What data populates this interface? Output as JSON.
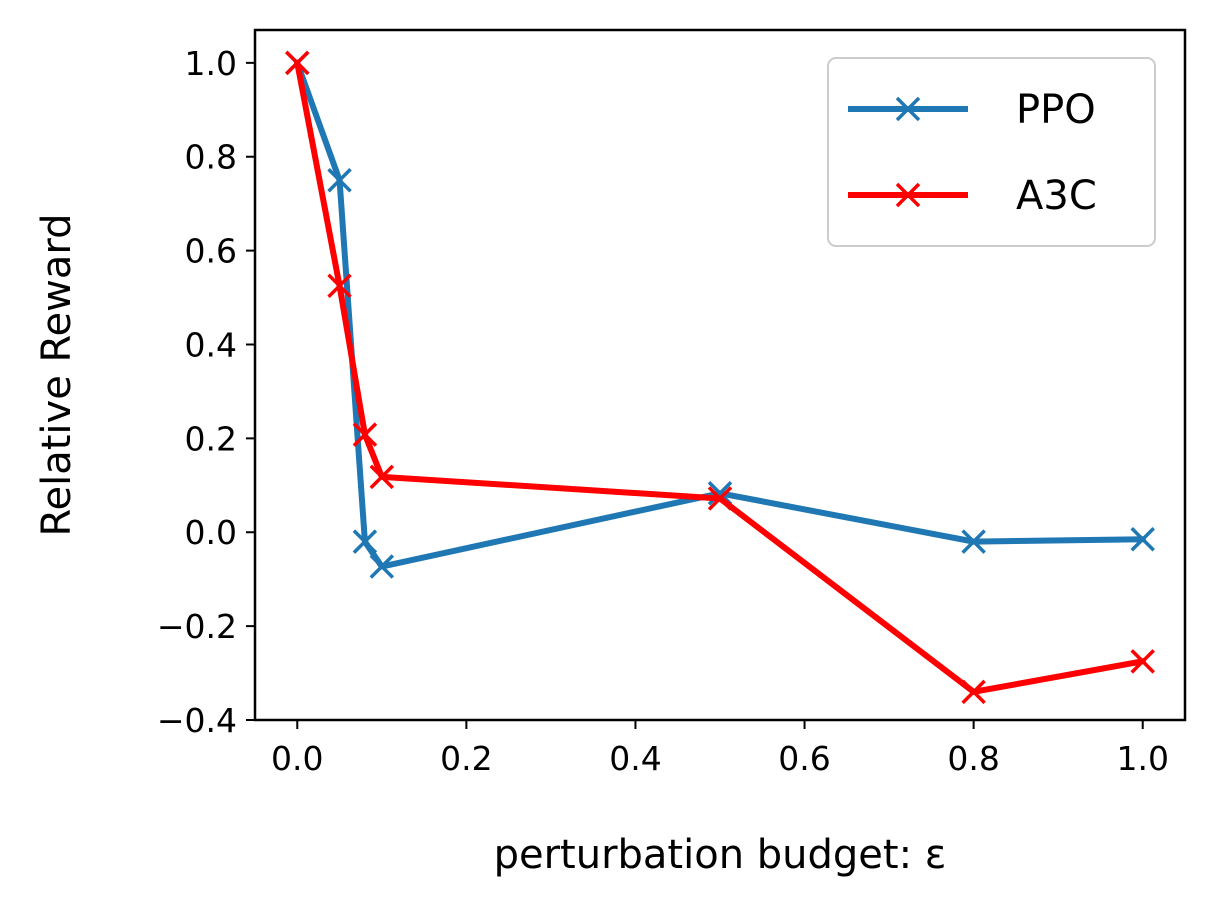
{
  "chart_data": {
    "type": "line",
    "title": "",
    "xlabel": "perturbation budget: ε",
    "ylabel": "Relative Reward",
    "xlim": [
      -0.05,
      1.05
    ],
    "ylim": [
      -0.4,
      1.07
    ],
    "xticks": [
      0.0,
      0.2,
      0.4,
      0.6,
      0.8,
      1.0
    ],
    "xtick_labels": [
      "0.0",
      "0.2",
      "0.4",
      "0.6",
      "0.8",
      "1.0"
    ],
    "yticks": [
      -0.4,
      -0.2,
      0.0,
      0.2,
      0.4,
      0.6,
      0.8,
      1.0
    ],
    "ytick_labels": [
      "−0.4",
      "−0.2",
      "0.0",
      "0.2",
      "0.4",
      "0.6",
      "0.8",
      "1.0"
    ],
    "grid": false,
    "legend_position": "top-right",
    "series": [
      {
        "name": "PPO",
        "color": "#1f77b4",
        "marker": "x",
        "x": [
          0.0,
          0.05,
          0.08,
          0.1,
          0.5,
          0.8,
          1.0
        ],
        "y": [
          1.0,
          0.75,
          -0.02,
          -0.073,
          0.083,
          -0.02,
          -0.015
        ]
      },
      {
        "name": "A3C",
        "color": "#ff0000",
        "marker": "x",
        "x": [
          0.0,
          0.05,
          0.08,
          0.1,
          0.5,
          0.8,
          1.0
        ],
        "y": [
          1.0,
          0.525,
          0.208,
          0.118,
          0.072,
          -0.34,
          -0.275
        ]
      }
    ]
  }
}
